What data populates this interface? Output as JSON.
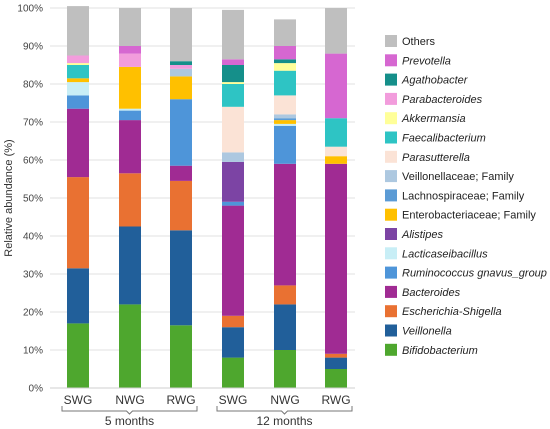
{
  "chart_data": {
    "type": "bar",
    "stacked": true,
    "ylabel": "Relative abundance (%)",
    "ylim": [
      0,
      100
    ],
    "yticks": [
      "0%",
      "10%",
      "20%",
      "30%",
      "40%",
      "50%",
      "60%",
      "70%",
      "80%",
      "90%",
      "100%"
    ],
    "categories": [
      "SWG",
      "NWG",
      "RWG",
      "SWG",
      "NWG",
      "RWG"
    ],
    "groups": [
      {
        "label": "5 months",
        "categories": [
          0,
          1,
          2
        ]
      },
      {
        "label": "12 months",
        "categories": [
          3,
          4,
          5
        ]
      }
    ],
    "grid": true,
    "legend_position": "right",
    "series": [
      {
        "name": "Bifidobacterium",
        "italic": true,
        "color": "#4ea72e",
        "values": [
          17.0,
          22.0,
          16.5,
          8.0,
          10.0,
          5.0
        ]
      },
      {
        "name": "Veillonella",
        "italic": true,
        "color": "#215f9a",
        "values": [
          14.5,
          20.5,
          25.0,
          8.0,
          12.0,
          3.0
        ]
      },
      {
        "name": "Escherichia-Shigella",
        "italic": true,
        "color": "#e97132",
        "values": [
          24.0,
          14.0,
          13.0,
          3.0,
          5.0,
          1.0
        ]
      },
      {
        "name": "Bacteroides",
        "italic": true,
        "color": "#a02b93",
        "values": [
          18.0,
          14.0,
          4.0,
          29.0,
          32.0,
          50.0
        ]
      },
      {
        "name": "Ruminococcus gnavus_group",
        "italic": true,
        "color": "#4e95d9",
        "values": [
          3.5,
          2.5,
          17.5,
          1.0,
          10.0,
          0.0
        ]
      },
      {
        "name": "Lacticaseibacillus",
        "italic": true,
        "color": "#c8eef6",
        "values": [
          3.5,
          0.5,
          0.0,
          0.0,
          0.5,
          0.0
        ]
      },
      {
        "name": "Alistipes",
        "italic": true,
        "color": "#7c44a4",
        "values": [
          0.0,
          0.0,
          0.0,
          10.5,
          0.0,
          0.0
        ]
      },
      {
        "name": "Enterobacteriaceae; Family",
        "italic": false,
        "color": "#ffc000",
        "values": [
          1.0,
          11.0,
          6.0,
          0.0,
          1.0,
          2.0
        ]
      },
      {
        "name": "Lachnospiraceae; Family",
        "italic": false,
        "color": "#5b9bd5",
        "values": [
          0.0,
          0.0,
          0.0,
          0.0,
          0.5,
          0.0
        ]
      },
      {
        "name": "Veillonellaceae; Family",
        "italic": false,
        "color": "#adc8e0",
        "values": [
          0.0,
          0.0,
          2.0,
          2.5,
          1.0,
          0.0
        ]
      },
      {
        "name": "Parasutterella",
        "italic": true,
        "color": "#fbe3d6",
        "values": [
          0.0,
          0.0,
          0.0,
          12.0,
          5.0,
          2.5
        ]
      },
      {
        "name": "Faecalibacterium",
        "italic": true,
        "color": "#2ec4c4",
        "values": [
          3.5,
          0.0,
          0.0,
          6.0,
          6.5,
          7.5
        ]
      },
      {
        "name": "Akkermansia",
        "italic": true,
        "color": "#ffff99",
        "values": [
          0.5,
          0.0,
          0.0,
          0.5,
          2.0,
          0.0
        ]
      },
      {
        "name": "Parabacteroides",
        "italic": true,
        "color": "#f29cdc",
        "values": [
          2.0,
          3.5,
          1.0,
          0.0,
          0.0,
          0.0
        ]
      },
      {
        "name": "Agathobacter",
        "italic": true,
        "color": "#158f8a",
        "values": [
          0.0,
          0.0,
          1.0,
          4.5,
          1.0,
          0.0
        ]
      },
      {
        "name": "Prevotella",
        "italic": true,
        "color": "#d667d1",
        "values": [
          0.0,
          2.0,
          0.0,
          1.5,
          3.5,
          17.0
        ]
      },
      {
        "name": "Others",
        "italic": false,
        "color": "#bfbfbf",
        "values": [
          13.0,
          10.0,
          14.0,
          13.0,
          7.0,
          12.0
        ]
      }
    ]
  }
}
